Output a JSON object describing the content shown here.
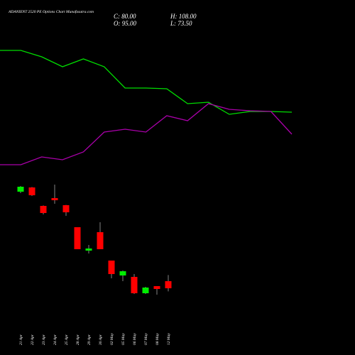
{
  "chart_data": [
    {
      "type": "line",
      "title": "ADANIENT 2520 PE Options Chart Munafasutra.com",
      "ylim": [
        0,
        200
      ],
      "series": [
        {
          "color": "#00dd00",
          "values": [
            179,
            179,
            170,
            156,
            167,
            156,
            126,
            126,
            125,
            104,
            106,
            89,
            93,
            93,
            92
          ]
        },
        {
          "color": "#aa00aa",
          "values": [
            18,
            18,
            29,
            25,
            36,
            64,
            68,
            64,
            87,
            80,
            104,
            96,
            94,
            93,
            61
          ]
        }
      ]
    },
    {
      "type": "candlestick",
      "summary": [
        {
          "label": "C: 80.00",
          "value": 80
        },
        {
          "label": "H: 108.00",
          "value": 108
        },
        {
          "label": "O: 95.00",
          "value": 95
        },
        {
          "label": "L: 73.50",
          "value": 73.5
        }
      ],
      "categories": [
        "21 Apr",
        "22 Apr",
        "23 Apr",
        "24 Apr",
        "25 Apr",
        "28 Apr",
        "29 Apr",
        "30 Apr",
        "02 May",
        "05 May",
        "06 May",
        "07 May",
        "08 May",
        "12 May"
      ],
      "open": [
        284,
        293,
        254,
        270.5,
        255.5,
        209,
        159.5,
        198.5,
        138.5,
        107,
        104,
        69.5,
        84.5,
        95
      ],
      "high": [
        296,
        294,
        255,
        299,
        256,
        209,
        171.5,
        219.5,
        138.5,
        117.5,
        110,
        83,
        84.5,
        108
      ],
      "low": [
        281,
        275,
        236,
        258.5,
        233,
        162.5,
        153.5,
        162.5,
        101,
        95,
        68,
        68,
        66.5,
        73.5
      ],
      "close": [
        294.5,
        276.5,
        239,
        266,
        240.5,
        162.5,
        164,
        162.5,
        110,
        116,
        69.5,
        81.5,
        78.5,
        80
      ],
      "up_color": "#00ee00",
      "down_color": "#ff0000",
      "ylim": [
        6.5,
        306.5
      ]
    }
  ]
}
